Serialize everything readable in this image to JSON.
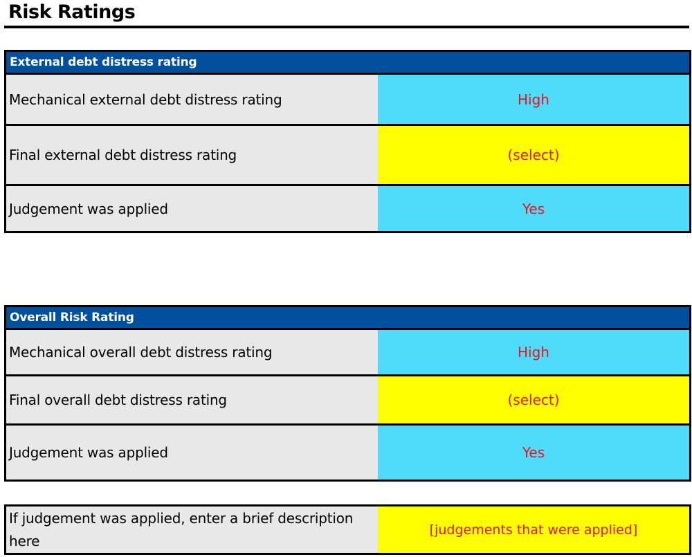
{
  "page": {
    "title": "Risk Ratings"
  },
  "external": {
    "header": "External debt distress rating",
    "rows": [
      {
        "label": "Mechanical external debt distress rating",
        "value": "High"
      },
      {
        "label": "Final external debt distress rating",
        "value": "(select)"
      },
      {
        "label": "Judgement was applied",
        "value": "Yes"
      }
    ]
  },
  "overall": {
    "header": "Overall Risk Rating",
    "rows": [
      {
        "label": "Mechanical overall debt distress rating",
        "value": "High"
      },
      {
        "label": "Final overall debt distress rating",
        "value": "(select)"
      },
      {
        "label": "Judgement was applied",
        "value": "Yes"
      }
    ]
  },
  "description": {
    "label": "If judgement was applied, enter a brief description here",
    "value": "[judgements that were applied]"
  },
  "colors": {
    "header_bg": "#00509d",
    "computed_cell": "#4fdcfb",
    "input_cell": "#ffff00",
    "label_cell": "#e8e8e8",
    "value_text": "#e8141c"
  }
}
